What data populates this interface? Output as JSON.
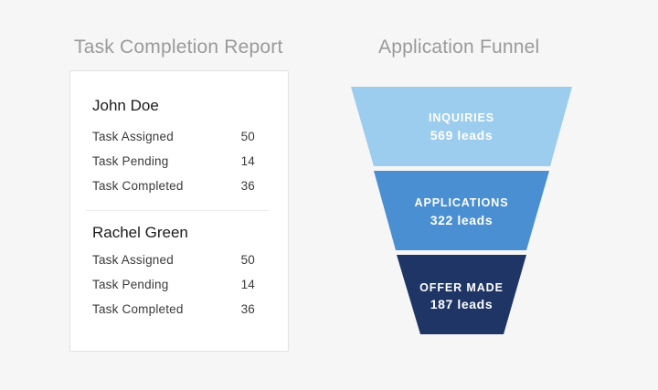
{
  "report": {
    "title": "Task Completion Report",
    "people": [
      {
        "name": "John Doe",
        "tasks": [
          {
            "label": "Task Assigned",
            "value": "50"
          },
          {
            "label": "Task Pending",
            "value": "14"
          },
          {
            "label": "Task Completed",
            "value": "36"
          }
        ]
      },
      {
        "name": "Rachel Green",
        "tasks": [
          {
            "label": "Task Assigned",
            "value": "50"
          },
          {
            "label": "Task Pending",
            "value": "14"
          },
          {
            "label": "Task Completed",
            "value": "36"
          }
        ]
      }
    ]
  },
  "funnel": {
    "title": "Application Funnel",
    "stages": [
      {
        "label": "INQUIRIES",
        "value": "569 leads",
        "color": "#9ccdee",
        "text_color": "#ffffff"
      },
      {
        "label": "APPLICATIONS",
        "value": "322 leads",
        "color": "#4a8fd1",
        "text_color": "#ffffff"
      },
      {
        "label": "OFFER MADE",
        "value": "187 leads",
        "color": "#1e3566",
        "text_color": "#ffffff"
      }
    ]
  }
}
